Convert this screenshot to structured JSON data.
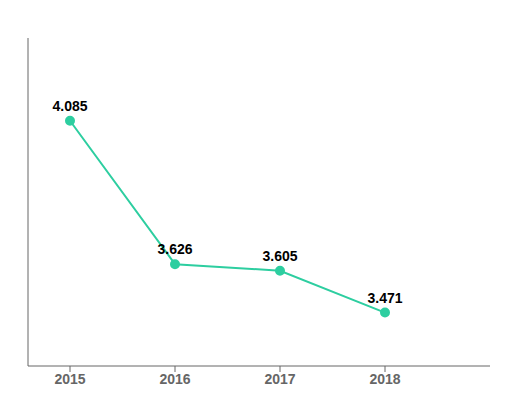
{
  "chart_data": {
    "type": "line",
    "x": [
      2015,
      2016,
      2017,
      2018
    ],
    "values": [
      4.085,
      3.626,
      3.605,
      3.471
    ],
    "color": "#2dcea0",
    "marker": "circle",
    "xlim": [
      2014.6,
      2019.0
    ],
    "xticks": [
      2015,
      2016,
      2017,
      2018
    ],
    "ylim": [
      3.3,
      4.35
    ],
    "data_labels": true,
    "tick_labels": "x",
    "grid": false
  }
}
